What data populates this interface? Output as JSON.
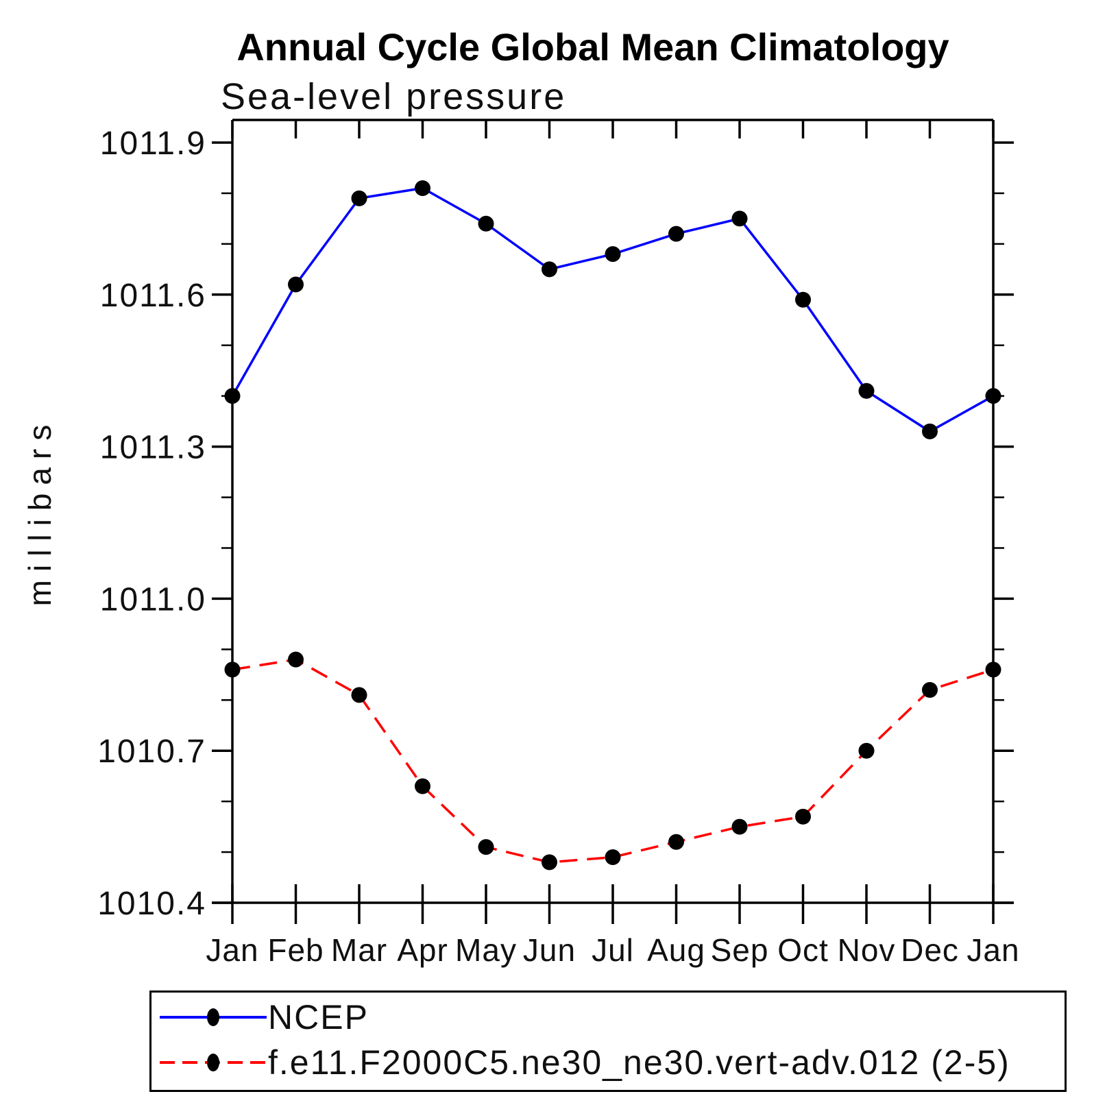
{
  "header": {
    "title": "Annual Cycle Global Mean Climatology",
    "subtitle": "Sea-level pressure"
  },
  "chart_data": {
    "type": "line",
    "title": "Annual Cycle Global Mean Climatology",
    "subtitle": "Sea-level pressure",
    "xlabel": "",
    "ylabel": "millibars",
    "categories": [
      "Jan",
      "Feb",
      "Mar",
      "Apr",
      "May",
      "Jun",
      "Jul",
      "Aug",
      "Sep",
      "Oct",
      "Nov",
      "Dec",
      "Jan"
    ],
    "ylim": [
      1010.4,
      1011.9
    ],
    "y_major_ticks": [
      1011.9,
      1011.6,
      1011.3,
      1011.0,
      1010.7,
      1010.4
    ],
    "y_minor_step": 0.1,
    "grid": false,
    "legend_position": "bottom",
    "axis_color": "#000000",
    "marker_shape": "filled-circle",
    "series": [
      {
        "name": "NCEP",
        "color": "#0000ff",
        "style": "solid",
        "marker_color": "#000000",
        "values": [
          1011.4,
          1011.62,
          1011.79,
          1011.81,
          1011.74,
          1011.65,
          1011.68,
          1011.72,
          1011.75,
          1011.59,
          1011.41,
          1011.33,
          1011.4
        ]
      },
      {
        "name": "f.e11.F2000C5.ne30_ne30.vert-adv.012 (2-5)",
        "color": "#ff0000",
        "style": "dashed",
        "marker_color": "#000000",
        "values": [
          1010.86,
          1010.88,
          1010.81,
          1010.63,
          1010.51,
          1010.48,
          1010.49,
          1010.52,
          1010.55,
          1010.57,
          1010.7,
          1010.82,
          1010.86
        ]
      }
    ]
  }
}
